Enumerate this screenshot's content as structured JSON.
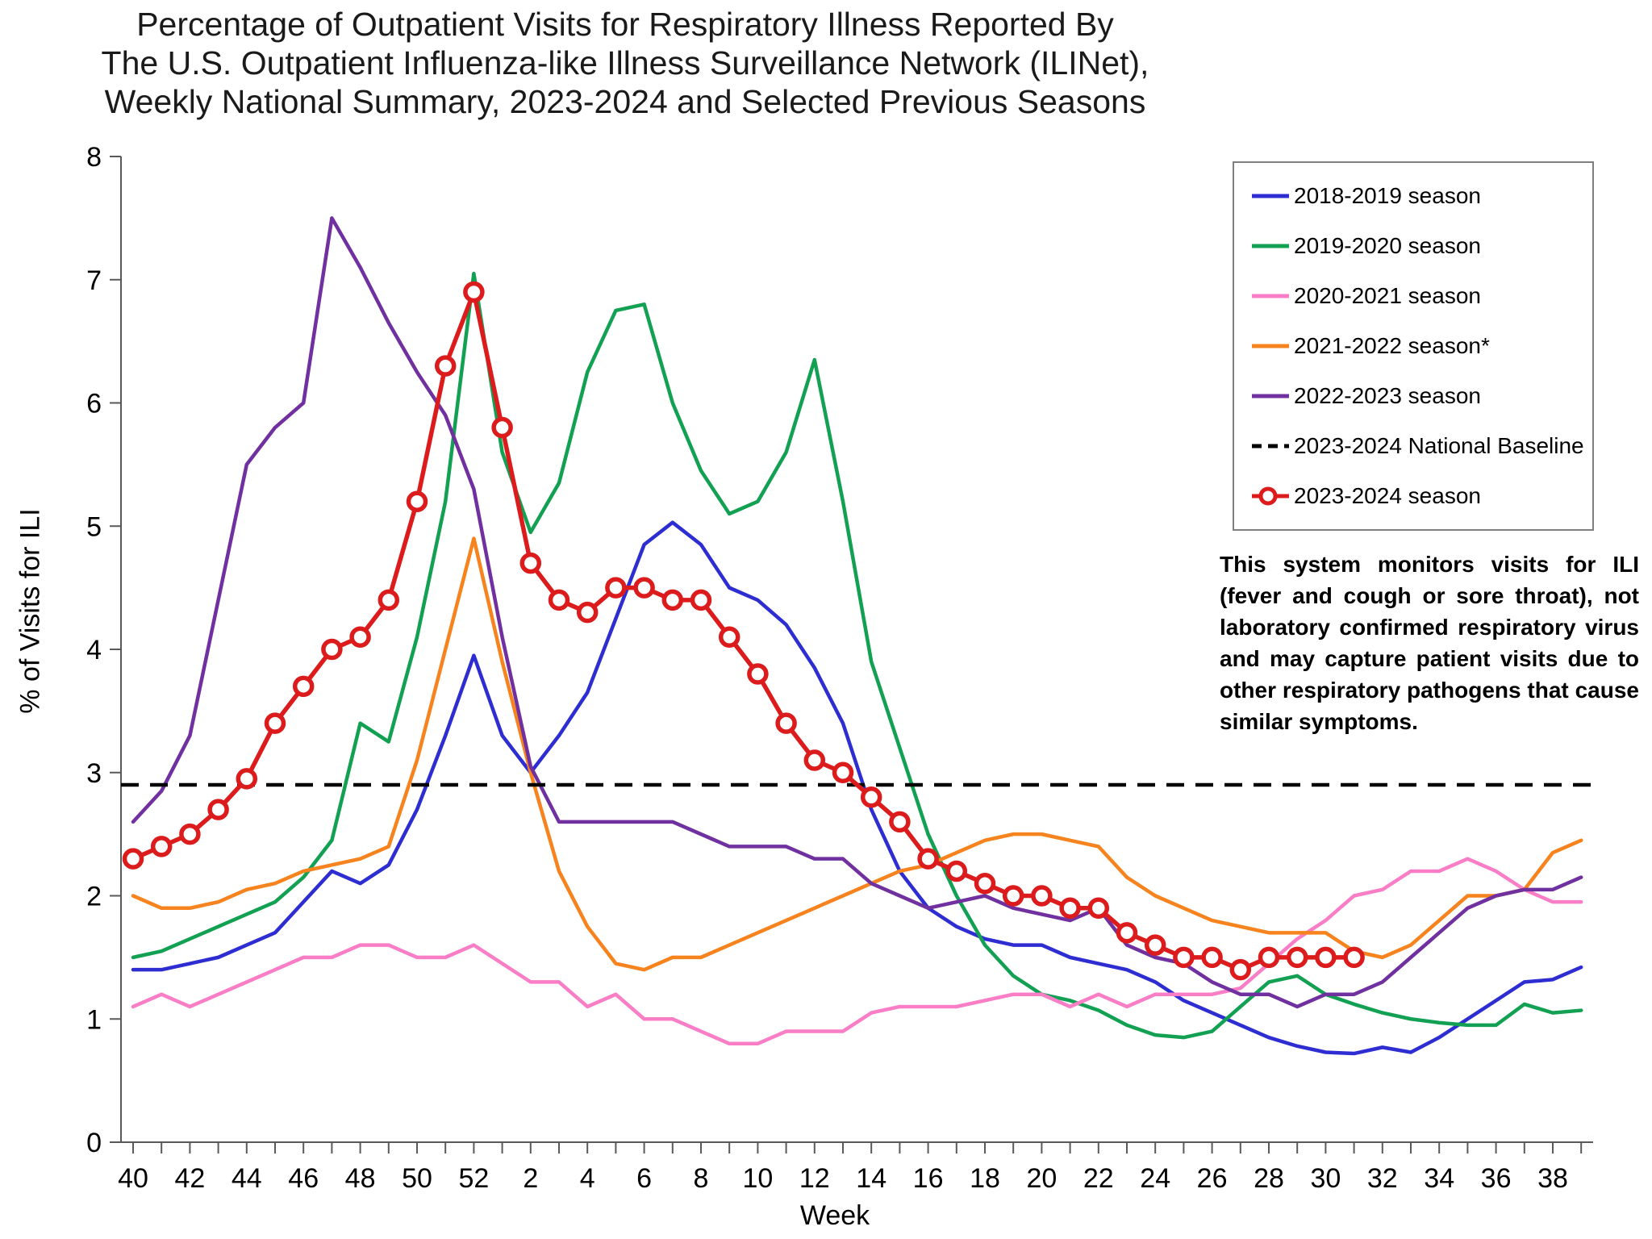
{
  "title": "Percentage of Outpatient Visits for Respiratory Illness Reported By\nThe U.S. Outpatient Influenza-like Illness Surveillance Network (ILINet),\nWeekly National Summary, 2023-2024 and Selected Previous Seasons",
  "note": "This system monitors visits for ILI (fever and cough or sore throat), not laboratory confirmed respiratory virus and may capture patient visits due to other respiratory pathogens that cause similar symptoms.",
  "legend": {
    "items": [
      {
        "label": "2018-2019 season",
        "color": "#2D2DD2",
        "style": "solid",
        "marker": false
      },
      {
        "label": "2019-2020 season",
        "color": "#12A053",
        "style": "solid",
        "marker": false
      },
      {
        "label": "2020-2021 season",
        "color": "#F97EC6",
        "style": "solid",
        "marker": false
      },
      {
        "label": "2021-2022 season*",
        "color": "#F6831D",
        "style": "solid",
        "marker": false
      },
      {
        "label": "2022-2023 season",
        "color": "#7030A0",
        "style": "solid",
        "marker": false
      },
      {
        "label": "2023-2024 National Baseline",
        "color": "#000000",
        "style": "dashed",
        "marker": false
      },
      {
        "label": "2023-2024 season",
        "color": "#DC1C1C",
        "style": "solid",
        "marker": true
      }
    ]
  },
  "chart_data": {
    "type": "line",
    "title": "Percentage of Outpatient Visits for Respiratory Illness Reported By The U.S. Outpatient Influenza-like Illness Surveillance Network (ILINet), Weekly National Summary, 2023-2024 and Selected Previous Seasons",
    "xlabel": "Week",
    "ylabel": "% of Visits for ILI",
    "ylim": [
      0,
      8
    ],
    "y_ticks": [
      0,
      1,
      2,
      3,
      4,
      5,
      6,
      7,
      8
    ],
    "x_label_every": 2,
    "grid": false,
    "legend_position": "upper right",
    "weeks": [
      40,
      41,
      42,
      43,
      44,
      45,
      46,
      47,
      48,
      49,
      50,
      51,
      52,
      1,
      2,
      3,
      4,
      5,
      6,
      7,
      8,
      9,
      10,
      11,
      12,
      13,
      14,
      15,
      16,
      17,
      18,
      19,
      20,
      21,
      22,
      23,
      24,
      25,
      26,
      27,
      28,
      29,
      30,
      31,
      32,
      33,
      34,
      35,
      36,
      37,
      38,
      39
    ],
    "baseline": {
      "label": "2023-2024 National Baseline",
      "value": 2.9,
      "color": "#000000",
      "style": "dashed"
    },
    "series": [
      {
        "name": "2018-2019 season",
        "color": "#2D2DD2",
        "marker": false,
        "values": [
          1.4,
          1.4,
          1.45,
          1.5,
          1.6,
          1.7,
          1.95,
          2.2,
          2.1,
          2.25,
          2.7,
          3.3,
          3.95,
          3.3,
          3.0,
          3.3,
          3.65,
          4.25,
          4.85,
          5.03,
          4.85,
          4.5,
          4.4,
          4.2,
          3.85,
          3.4,
          2.7,
          2.2,
          1.9,
          1.75,
          1.65,
          1.6,
          1.6,
          1.5,
          1.45,
          1.4,
          1.3,
          1.15,
          1.05,
          0.95,
          0.85,
          0.78,
          0.73,
          0.72,
          0.77,
          0.73,
          0.85,
          1.0,
          1.15,
          1.3,
          1.32,
          1.42
        ]
      },
      {
        "name": "2019-2020 season",
        "color": "#12A053",
        "marker": false,
        "values": [
          1.5,
          1.55,
          1.65,
          1.75,
          1.85,
          1.95,
          2.15,
          2.45,
          3.4,
          3.25,
          4.1,
          5.2,
          7.05,
          5.6,
          4.95,
          5.35,
          6.25,
          6.75,
          6.8,
          6.0,
          5.45,
          5.1,
          5.2,
          5.6,
          6.35,
          5.2,
          3.9,
          3.2,
          2.5,
          2.0,
          1.6,
          1.35,
          1.2,
          1.15,
          1.07,
          0.95,
          0.87,
          0.85,
          0.9,
          1.1,
          1.3,
          1.35,
          1.2,
          1.12,
          1.05,
          1.0,
          0.97,
          0.95,
          0.95,
          1.12,
          1.05,
          1.07
        ]
      },
      {
        "name": "2020-2021 season",
        "color": "#F97EC6",
        "marker": false,
        "values": [
          1.1,
          1.2,
          1.1,
          1.2,
          1.3,
          1.4,
          1.5,
          1.5,
          1.6,
          1.6,
          1.5,
          1.5,
          1.6,
          1.45,
          1.3,
          1.3,
          1.1,
          1.2,
          1.0,
          1.0,
          0.9,
          0.8,
          0.8,
          0.9,
          0.9,
          0.9,
          1.05,
          1.1,
          1.1,
          1.1,
          1.15,
          1.2,
          1.2,
          1.1,
          1.2,
          1.1,
          1.2,
          1.2,
          1.2,
          1.25,
          1.45,
          1.65,
          1.8,
          2.0,
          2.05,
          2.2,
          2.2,
          2.3,
          2.2,
          2.05,
          1.95,
          1.95
        ]
      },
      {
        "name": "2021-2022 season*",
        "color": "#F6831D",
        "marker": false,
        "values": [
          2.0,
          1.9,
          1.9,
          1.95,
          2.05,
          2.1,
          2.2,
          2.25,
          2.3,
          2.4,
          3.1,
          4.0,
          4.9,
          3.9,
          3.0,
          2.2,
          1.75,
          1.45,
          1.4,
          1.5,
          1.5,
          1.6,
          1.7,
          1.8,
          1.9,
          2.0,
          2.1,
          2.2,
          2.25,
          2.35,
          2.45,
          2.5,
          2.5,
          2.45,
          2.4,
          2.15,
          2.0,
          1.9,
          1.8,
          1.75,
          1.7,
          1.7,
          1.7,
          1.55,
          1.5,
          1.6,
          1.8,
          2.0,
          2.0,
          2.05,
          2.35,
          2.45
        ]
      },
      {
        "name": "2022-2023 season",
        "color": "#7030A0",
        "marker": false,
        "values": [
          2.6,
          2.85,
          3.3,
          4.4,
          5.5,
          5.8,
          6.0,
          7.5,
          7.1,
          6.65,
          6.25,
          5.9,
          5.3,
          4.1,
          3.05,
          2.6,
          2.6,
          2.6,
          2.6,
          2.6,
          2.5,
          2.4,
          2.4,
          2.4,
          2.3,
          2.3,
          2.1,
          2.0,
          1.9,
          1.95,
          2.0,
          1.9,
          1.85,
          1.8,
          1.9,
          1.6,
          1.5,
          1.45,
          1.3,
          1.2,
          1.2,
          1.1,
          1.2,
          1.2,
          1.3,
          1.5,
          1.7,
          1.9,
          2.0,
          2.05,
          2.05,
          2.15
        ]
      },
      {
        "name": "2023-2024 season",
        "color": "#DC1C1C",
        "marker": true,
        "values": [
          2.3,
          2.4,
          2.5,
          2.7,
          2.95,
          3.4,
          3.7,
          4.0,
          4.1,
          4.4,
          5.2,
          6.3,
          6.9,
          5.8,
          4.7,
          4.4,
          4.3,
          4.5,
          4.5,
          4.4,
          4.4,
          4.1,
          3.8,
          3.4,
          3.1,
          3.0,
          2.8,
          2.6,
          2.3,
          2.2,
          2.1,
          2.0,
          2.0,
          1.9,
          1.9,
          1.7,
          1.6,
          1.5,
          1.5,
          1.4,
          1.5,
          1.5,
          1.5,
          1.5
        ]
      }
    ]
  }
}
